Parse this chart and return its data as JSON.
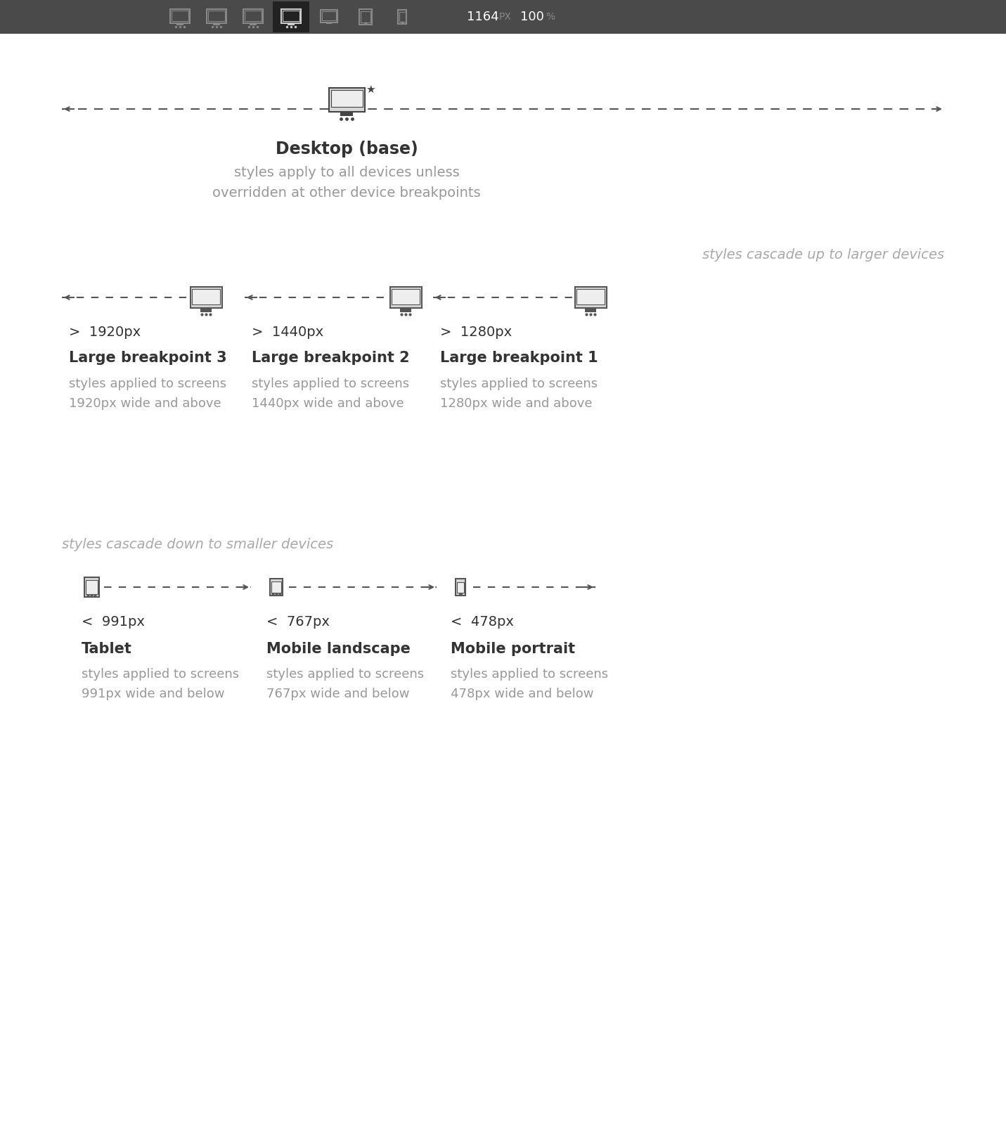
{
  "main_bg": "#ffffff",
  "toolbar_color": "#4a4a4a",
  "toolbar_active_color": "#333333",
  "line_color": "#555555",
  "text_color_dark": "#333333",
  "text_color_light": "#999999",
  "text_color_italic": "#aaaaaa",
  "icon_color": "#555555",
  "desktop_title": "Desktop (base)",
  "desktop_subtitle": "styles apply to all devices unless\noverridden at other device breakpoints",
  "cascade_up_label": "styles cascade up to larger devices",
  "cascade_down_label": "styles cascade down to smaller devices",
  "large_breakpoints": [
    {
      "label": "Large breakpoint 3",
      "size": ">  1920px",
      "desc": "styles applied to screens\n1920px wide and above"
    },
    {
      "label": "Large breakpoint 2",
      "size": ">  1440px",
      "desc": "styles applied to screens\n1440px wide and above"
    },
    {
      "label": "Large breakpoint 1",
      "size": ">  1280px",
      "desc": "styles applied to screens\n1280px wide and above"
    }
  ],
  "small_breakpoints": [
    {
      "label": "Tablet",
      "size": "<  991px",
      "desc": "styles applied to screens\n991px wide and below"
    },
    {
      "label": "Mobile landscape",
      "size": "<  767px",
      "desc": "styles applied to screens\n767px wide and below"
    },
    {
      "label": "Mobile portrait",
      "size": "<  478px",
      "desc": "styles applied to screens\n478px wide and below"
    }
  ]
}
